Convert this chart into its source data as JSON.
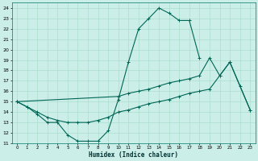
{
  "xlabel": "Humidex (Indice chaleur)",
  "background_color": "#cceee8",
  "grid_color": "#aaddcc",
  "line_color": "#006655",
  "xlim": [
    -0.5,
    23.5
  ],
  "ylim": [
    11,
    24.5
  ],
  "xticks": [
    0,
    1,
    2,
    3,
    4,
    5,
    6,
    7,
    8,
    9,
    10,
    11,
    12,
    13,
    14,
    15,
    16,
    17,
    18,
    19,
    20,
    21,
    22,
    23
  ],
  "yticks": [
    11,
    12,
    13,
    14,
    15,
    16,
    17,
    18,
    19,
    20,
    21,
    22,
    23,
    24
  ],
  "series": [
    {
      "x": [
        0,
        1,
        2,
        3,
        4,
        5,
        6,
        7,
        8,
        9,
        10,
        11,
        12,
        13,
        14,
        15,
        16,
        17,
        18
      ],
      "y": [
        15,
        14.5,
        13.8,
        13.0,
        13.0,
        11.8,
        11.2,
        11.2,
        11.2,
        12.2,
        15.2,
        18.8,
        22.0,
        23.0,
        24.0,
        23.5,
        22.8,
        22.8,
        19.2
      ]
    },
    {
      "x": [
        0,
        10,
        11,
        12,
        13,
        14,
        15,
        16,
        17,
        18,
        19,
        20,
        21,
        22,
        23
      ],
      "y": [
        15,
        15.5,
        15.8,
        16.0,
        16.2,
        16.5,
        16.8,
        17.0,
        17.2,
        17.5,
        19.2,
        17.5,
        18.8,
        16.5,
        14.2
      ]
    },
    {
      "x": [
        0,
        1,
        2,
        3,
        4,
        5,
        6,
        7,
        8,
        9,
        10,
        11,
        12,
        13,
        14,
        15,
        16,
        17,
        18,
        19,
        20,
        21,
        23
      ],
      "y": [
        15,
        14.5,
        14.0,
        13.5,
        13.2,
        13.0,
        13.0,
        13.0,
        13.2,
        13.5,
        14.0,
        14.2,
        14.5,
        14.8,
        15.0,
        15.2,
        15.5,
        15.8,
        16.0,
        16.2,
        17.5,
        18.8,
        14.2
      ]
    }
  ]
}
